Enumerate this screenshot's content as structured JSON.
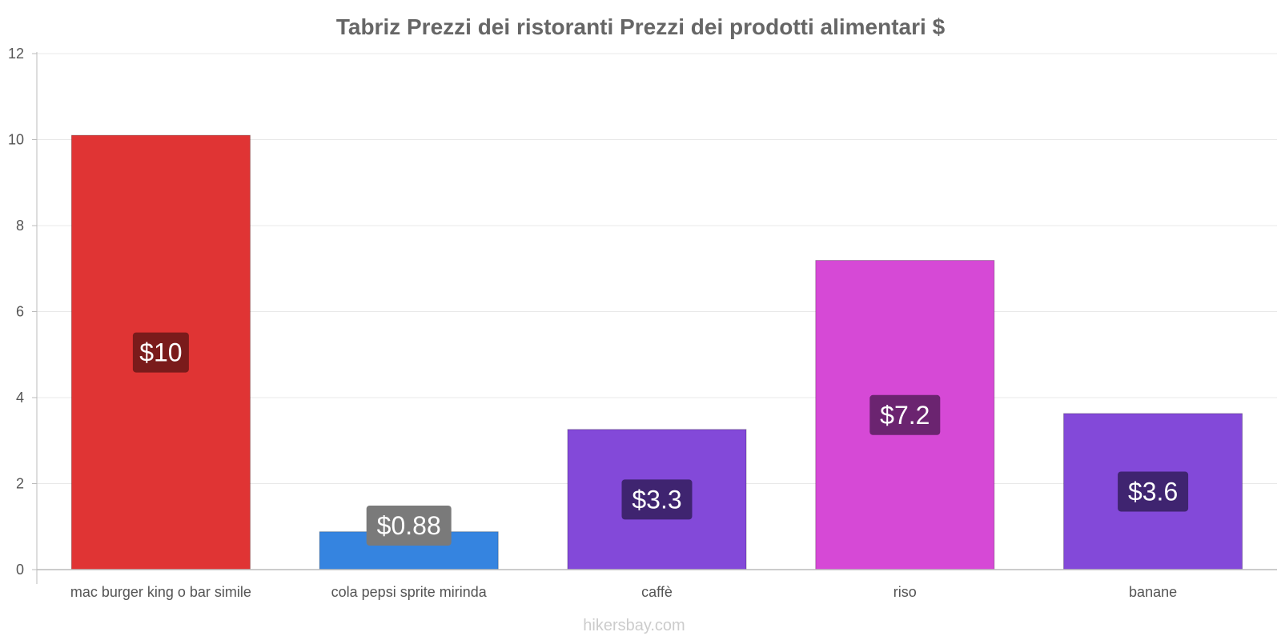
{
  "chart_data": {
    "type": "bar",
    "title": "Tabriz Prezzi dei ristoranti Prezzi dei prodotti alimentari $",
    "categories": [
      "mac burger king o bar simile",
      "cola pepsi sprite mirinda",
      "caffè",
      "riso",
      "banane"
    ],
    "values": [
      10.1,
      0.88,
      3.26,
      7.19,
      3.63
    ],
    "labels": [
      "$10",
      "$0.88",
      "$3.3",
      "$7.2",
      "$3.6"
    ],
    "colors": [
      "#e03434",
      "#3584e0",
      "#8349d9",
      "#d649d6",
      "#8349d9"
    ],
    "label_bg_colors": [
      "#7a1b1b",
      "#7a7a7a",
      "#3f2470",
      "#6b2470",
      "#3f2470"
    ],
    "ylim": [
      0,
      12
    ],
    "yticks": [
      0,
      2,
      4,
      6,
      8,
      10,
      12
    ],
    "xlabel": "",
    "ylabel": "",
    "grid": true
  },
  "watermark": "hikersbay.com"
}
